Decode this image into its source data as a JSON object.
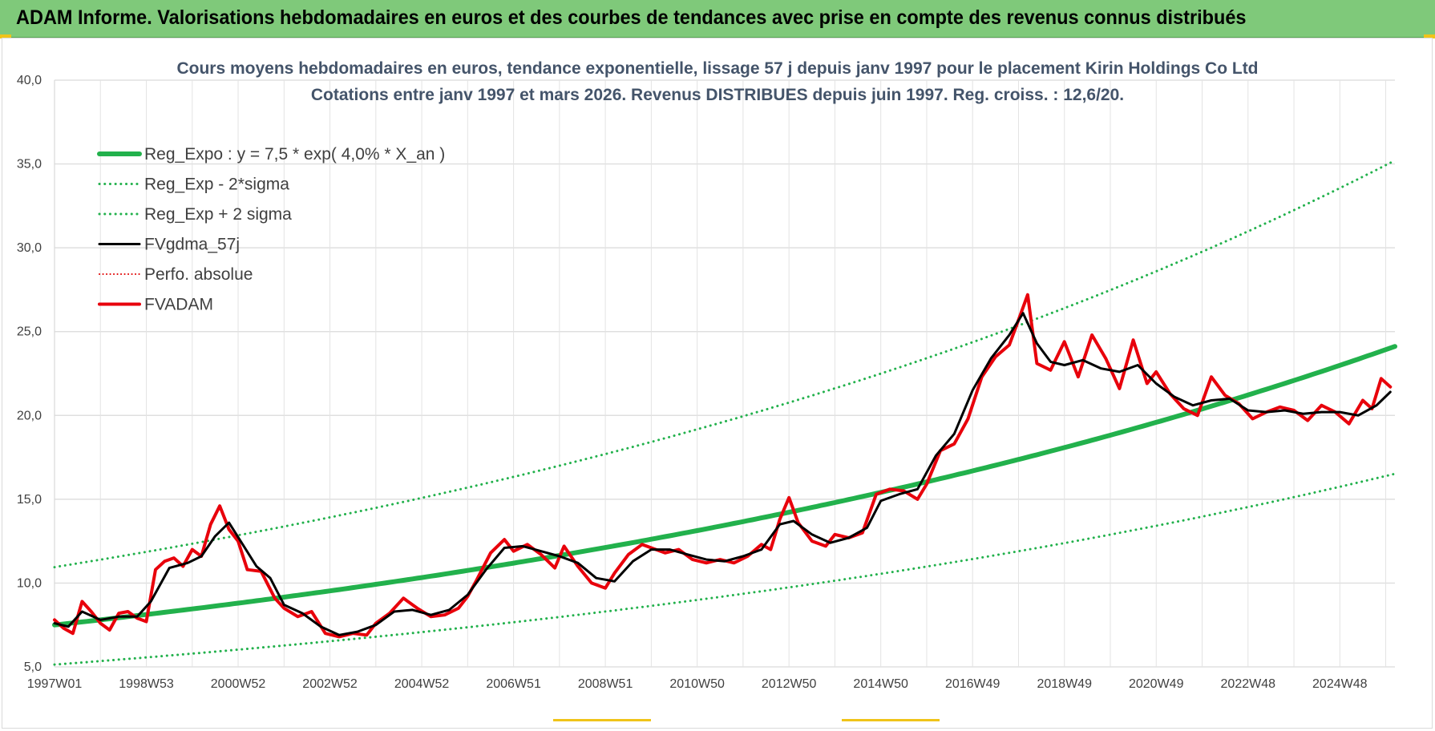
{
  "banner": {
    "title": "ADAM Informe. Valorisations hebdomadaires en euros et des courbes de tendances avec prise en compte des revenus connus distribués"
  },
  "chart_data": {
    "type": "line",
    "title": "Cours moyens hebdomadaires en euros, tendance exponentielle, lissage 57 j depuis janv 1997 pour le placement Kirin Holdings Co Ltd",
    "subtitle": "Cotations entre janv 1997 et mars 2026. Revenus DISTRIBUES depuis juin 1997. Reg. croiss. : 12,6/20.",
    "xlabel": "",
    "ylabel": "",
    "x_range": [
      1997.0,
      2026.2
    ],
    "ylim": [
      5.0,
      40.0
    ],
    "y_ticks": [
      5.0,
      10.0,
      15.0,
      20.0,
      25.0,
      30.0,
      35.0,
      40.0
    ],
    "y_tick_labels": [
      "5,0",
      "10,0",
      "15,0",
      "20,0",
      "25,0",
      "30,0",
      "35,0",
      "40,0"
    ],
    "x_ticks": [
      {
        "x": 1997.0,
        "label": "1997W01"
      },
      {
        "x": 1999.0,
        "label": "1998W53"
      },
      {
        "x": 2001.0,
        "label": "2000W52"
      },
      {
        "x": 2003.0,
        "label": "2002W52"
      },
      {
        "x": 2005.0,
        "label": "2004W52"
      },
      {
        "x": 2007.0,
        "label": "2006W51"
      },
      {
        "x": 2009.0,
        "label": "2008W51"
      },
      {
        "x": 2011.0,
        "label": "2010W50"
      },
      {
        "x": 2013.0,
        "label": "2012W50"
      },
      {
        "x": 2015.0,
        "label": "2014W50"
      },
      {
        "x": 2017.0,
        "label": "2016W49"
      },
      {
        "x": 2019.0,
        "label": "2018W49"
      },
      {
        "x": 2021.0,
        "label": "2020W49"
      },
      {
        "x": 2023.0,
        "label": "2022W48"
      },
      {
        "x": 2025.0,
        "label": "2024W48"
      }
    ],
    "grid": true,
    "legend_position": "top-left",
    "regression": {
      "a": 7.5,
      "rate": 0.04,
      "x0": 1997.0,
      "sigma_factor": 1.46
    },
    "series": [
      {
        "name": "Reg_Expo : y = 7,5 * exp( 4,0% *  X_an )",
        "color": "#22b14c",
        "style": "solid",
        "width": 6,
        "kind": "reg"
      },
      {
        "name": "Reg_Exp - 2*sigma",
        "color": "#22b14c",
        "style": "dotted",
        "width": 3,
        "kind": "reg_low"
      },
      {
        "name": "Reg_Exp + 2 sigma",
        "color": "#22b14c",
        "style": "dotted",
        "width": 3,
        "kind": "reg_high"
      },
      {
        "name": "FVgdma_57j",
        "color": "#000000",
        "style": "solid",
        "width": 3,
        "kind": "smooth"
      },
      {
        "name": "Perfo. absolue",
        "color": "#e00000",
        "style": "dotted",
        "width": 2,
        "kind": "none"
      },
      {
        "name": "FVADAM",
        "color": "#e8000b",
        "style": "solid",
        "width": 4,
        "kind": "raw"
      }
    ],
    "fvadam": {
      "x": [
        1997.0,
        1997.2,
        1997.4,
        1997.6,
        1997.8,
        1998.0,
        1998.2,
        1998.4,
        1998.6,
        1998.8,
        1999.0,
        1999.2,
        1999.4,
        1999.6,
        1999.8,
        2000.0,
        2000.2,
        2000.4,
        2000.6,
        2000.8,
        2001.0,
        2001.2,
        2001.5,
        2001.8,
        2002.0,
        2002.3,
        2002.6,
        2002.9,
        2003.2,
        2003.5,
        2003.8,
        2004.0,
        2004.3,
        2004.6,
        2004.9,
        2005.2,
        2005.5,
        2005.8,
        2006.0,
        2006.2,
        2006.5,
        2006.8,
        2007.0,
        2007.3,
        2007.6,
        2007.9,
        2008.1,
        2008.4,
        2008.7,
        2009.0,
        2009.2,
        2009.5,
        2009.8,
        2010.0,
        2010.3,
        2010.6,
        2010.9,
        2011.2,
        2011.5,
        2011.8,
        2012.1,
        2012.4,
        2012.6,
        2012.8,
        2013.0,
        2013.2,
        2013.5,
        2013.8,
        2014.0,
        2014.3,
        2014.6,
        2014.9,
        2015.2,
        2015.5,
        2015.8,
        2016.0,
        2016.3,
        2016.6,
        2016.9,
        2017.2,
        2017.5,
        2017.8,
        2018.0,
        2018.2,
        2018.4,
        2018.7,
        2019.0,
        2019.3,
        2019.6,
        2019.9,
        2020.2,
        2020.5,
        2020.8,
        2021.0,
        2021.3,
        2021.6,
        2021.9,
        2022.2,
        2022.5,
        2022.8,
        2023.1,
        2023.4,
        2023.7,
        2024.0,
        2024.3,
        2024.6,
        2024.9,
        2025.2,
        2025.5,
        2025.7,
        2025.9,
        2026.1
      ],
      "y": [
        7.8,
        7.3,
        7.0,
        8.9,
        8.3,
        7.6,
        7.2,
        8.2,
        8.3,
        7.9,
        7.7,
        10.8,
        11.3,
        11.5,
        11.0,
        12.0,
        11.6,
        13.5,
        14.6,
        13.2,
        12.5,
        10.8,
        10.7,
        9.1,
        8.5,
        8.0,
        8.3,
        7.0,
        6.8,
        7.0,
        6.9,
        7.6,
        8.2,
        9.1,
        8.5,
        8.0,
        8.1,
        8.5,
        9.2,
        10.2,
        11.8,
        12.6,
        11.9,
        12.3,
        11.7,
        10.9,
        12.2,
        11.0,
        10.0,
        9.7,
        10.6,
        11.7,
        12.3,
        12.1,
        11.8,
        12.0,
        11.4,
        11.2,
        11.4,
        11.2,
        11.6,
        12.3,
        12.0,
        13.8,
        15.1,
        13.6,
        12.5,
        12.2,
        12.9,
        12.7,
        13.0,
        15.3,
        15.6,
        15.5,
        15.0,
        15.9,
        17.9,
        18.3,
        19.8,
        22.3,
        23.5,
        24.2,
        25.7,
        27.2,
        23.1,
        22.7,
        24.4,
        22.3,
        24.8,
        23.4,
        21.6,
        24.5,
        21.9,
        22.6,
        21.3,
        20.4,
        20.0,
        22.3,
        21.2,
        20.7,
        19.8,
        20.2,
        20.5,
        20.3,
        19.7,
        20.6,
        20.2,
        19.5,
        20.9,
        20.4,
        22.2,
        21.7
      ]
    },
    "fvgdma_57j": {
      "x": [
        1997.0,
        1997.3,
        1997.6,
        1998.0,
        1998.4,
        1998.8,
        1999.1,
        1999.5,
        1999.9,
        2000.2,
        2000.5,
        2000.8,
        2001.1,
        2001.4,
        2001.7,
        2002.0,
        2002.4,
        2002.8,
        2003.2,
        2003.6,
        2004.0,
        2004.4,
        2004.8,
        2005.2,
        2005.6,
        2006.0,
        2006.4,
        2006.8,
        2007.2,
        2007.6,
        2008.0,
        2008.4,
        2008.8,
        2009.2,
        2009.6,
        2010.0,
        2010.4,
        2010.8,
        2011.2,
        2011.6,
        2012.0,
        2012.4,
        2012.8,
        2013.1,
        2013.5,
        2013.9,
        2014.3,
        2014.7,
        2015.0,
        2015.4,
        2015.8,
        2016.2,
        2016.6,
        2017.0,
        2017.4,
        2017.8,
        2018.1,
        2018.4,
        2018.7,
        2019.0,
        2019.4,
        2019.8,
        2020.2,
        2020.6,
        2021.0,
        2021.4,
        2021.8,
        2022.2,
        2022.6,
        2023.0,
        2023.4,
        2023.8,
        2024.2,
        2024.6,
        2025.0,
        2025.4,
        2025.8,
        2026.1
      ],
      "y": [
        7.6,
        7.4,
        8.3,
        7.8,
        8.0,
        8.0,
        8.9,
        10.9,
        11.2,
        11.6,
        12.8,
        13.6,
        12.3,
        11.0,
        10.3,
        8.7,
        8.2,
        7.4,
        6.9,
        7.1,
        7.5,
        8.3,
        8.4,
        8.1,
        8.4,
        9.3,
        10.8,
        12.1,
        12.2,
        11.9,
        11.6,
        11.2,
        10.3,
        10.1,
        11.3,
        12.0,
        12.0,
        11.7,
        11.4,
        11.3,
        11.6,
        12.0,
        13.5,
        13.7,
        12.9,
        12.4,
        12.7,
        13.3,
        14.9,
        15.3,
        15.6,
        17.6,
        18.9,
        21.5,
        23.4,
        24.8,
        26.1,
        24.3,
        23.2,
        23.0,
        23.3,
        22.8,
        22.6,
        23.0,
        21.9,
        21.1,
        20.6,
        20.9,
        21.0,
        20.3,
        20.2,
        20.3,
        20.1,
        20.2,
        20.2,
        20.0,
        20.6,
        21.4
      ]
    }
  }
}
